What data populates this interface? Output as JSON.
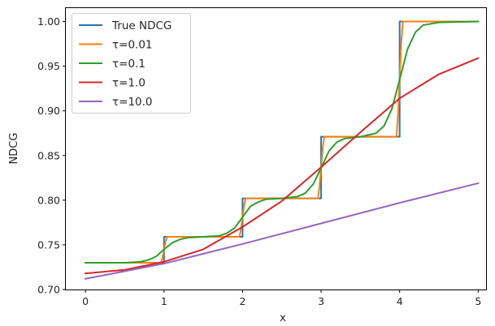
{
  "chart_data": {
    "type": "line",
    "xlabel": "x",
    "ylabel": "NDCG",
    "xlim": [
      -0.25,
      5.1
    ],
    "ylim": [
      0.7,
      1.015
    ],
    "xticks": [
      0,
      1,
      2,
      3,
      4,
      5
    ],
    "yticks": [
      0.7,
      0.75,
      0.8,
      0.85,
      0.9,
      0.95,
      1.0
    ],
    "x_tick_labels": [
      "0",
      "1",
      "2",
      "3",
      "4",
      "5"
    ],
    "y_tick_labels": [
      "0.70",
      "0.75",
      "0.80",
      "0.85",
      "0.90",
      "0.95",
      "1.00"
    ],
    "grid": false,
    "legend_position": "top-left",
    "series": [
      {
        "name": "True NDCG",
        "color": "#1f77b4",
        "x": [
          0,
          1,
          1,
          2,
          2,
          3,
          3,
          4,
          4,
          5
        ],
        "y": [
          0.73,
          0.73,
          0.759,
          0.759,
          0.802,
          0.802,
          0.871,
          0.871,
          1.0,
          1.0
        ]
      },
      {
        "name": "τ=0.01",
        "color": "#ff7f0e",
        "x": [
          0,
          0.96,
          0.98,
          1.0,
          1.02,
          1.04,
          1.96,
          1.98,
          2.0,
          2.02,
          2.04,
          2.96,
          2.98,
          3.0,
          3.02,
          3.04,
          3.96,
          3.98,
          4.0,
          4.02,
          4.04,
          5.0
        ],
        "y": [
          0.73,
          0.73,
          0.735,
          0.745,
          0.754,
          0.759,
          0.759,
          0.768,
          0.781,
          0.794,
          0.802,
          0.802,
          0.816,
          0.836,
          0.858,
          0.871,
          0.871,
          0.898,
          0.936,
          0.975,
          1.0,
          1.0
        ]
      },
      {
        "name": "τ=0.1",
        "color": "#2ca02c",
        "x": [
          0,
          0.5,
          0.7,
          0.8,
          0.9,
          1.0,
          1.1,
          1.2,
          1.3,
          1.5,
          1.7,
          1.8,
          1.9,
          2.0,
          2.1,
          2.2,
          2.3,
          2.5,
          2.7,
          2.8,
          2.9,
          3.0,
          3.1,
          3.2,
          3.3,
          3.5,
          3.7,
          3.8,
          3.9,
          4.0,
          4.1,
          4.2,
          4.3,
          4.5,
          5.0
        ],
        "y": [
          0.73,
          0.73,
          0.731,
          0.733,
          0.737,
          0.745,
          0.752,
          0.756,
          0.758,
          0.759,
          0.76,
          0.763,
          0.769,
          0.781,
          0.793,
          0.798,
          0.801,
          0.802,
          0.804,
          0.808,
          0.818,
          0.836,
          0.855,
          0.865,
          0.869,
          0.871,
          0.875,
          0.883,
          0.902,
          0.935,
          0.969,
          0.988,
          0.996,
          0.999,
          1.0
        ]
      },
      {
        "name": "τ=1.0",
        "color": "#d62728",
        "x": [
          0,
          0.5,
          1.0,
          1.5,
          2.0,
          2.5,
          3.0,
          3.5,
          4.0,
          4.5,
          5.0
        ],
        "y": [
          0.718,
          0.722,
          0.731,
          0.745,
          0.77,
          0.799,
          0.837,
          0.876,
          0.914,
          0.941,
          0.959
        ]
      },
      {
        "name": "τ=10.0",
        "color": "#9467bd",
        "x": [
          0,
          1,
          2,
          3,
          4,
          5
        ],
        "y": [
          0.712,
          0.729,
          0.751,
          0.774,
          0.797,
          0.819
        ]
      }
    ]
  }
}
